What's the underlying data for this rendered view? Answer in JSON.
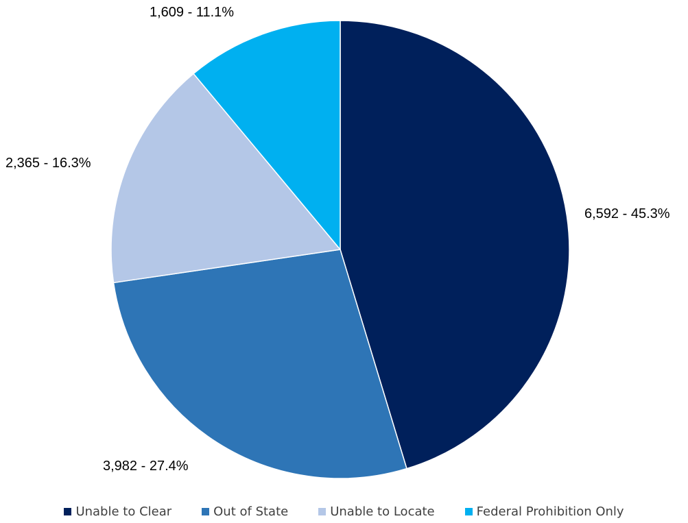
{
  "chart_data": {
    "type": "pie",
    "title": "",
    "start_angle_deg": 0,
    "direction": "clockwise",
    "legend_position": "bottom",
    "slices": [
      {
        "name": "Unable to Clear",
        "value": 6592,
        "percent": 45.3,
        "label": "6,592 - 45.3%",
        "color": "#00205B"
      },
      {
        "name": "Out of State",
        "value": 3982,
        "percent": 27.4,
        "label": "3,982 - 27.4%",
        "color": "#2E75B6"
      },
      {
        "name": "Unable to Locate",
        "value": 2365,
        "percent": 16.3,
        "label": "2,365 - 16.3%",
        "color": "#B4C7E7"
      },
      {
        "name": "Federal Prohibition Only",
        "value": 1609,
        "percent": 11.1,
        "label": "1,609 - 11.1%",
        "color": "#00B0F0"
      }
    ]
  }
}
